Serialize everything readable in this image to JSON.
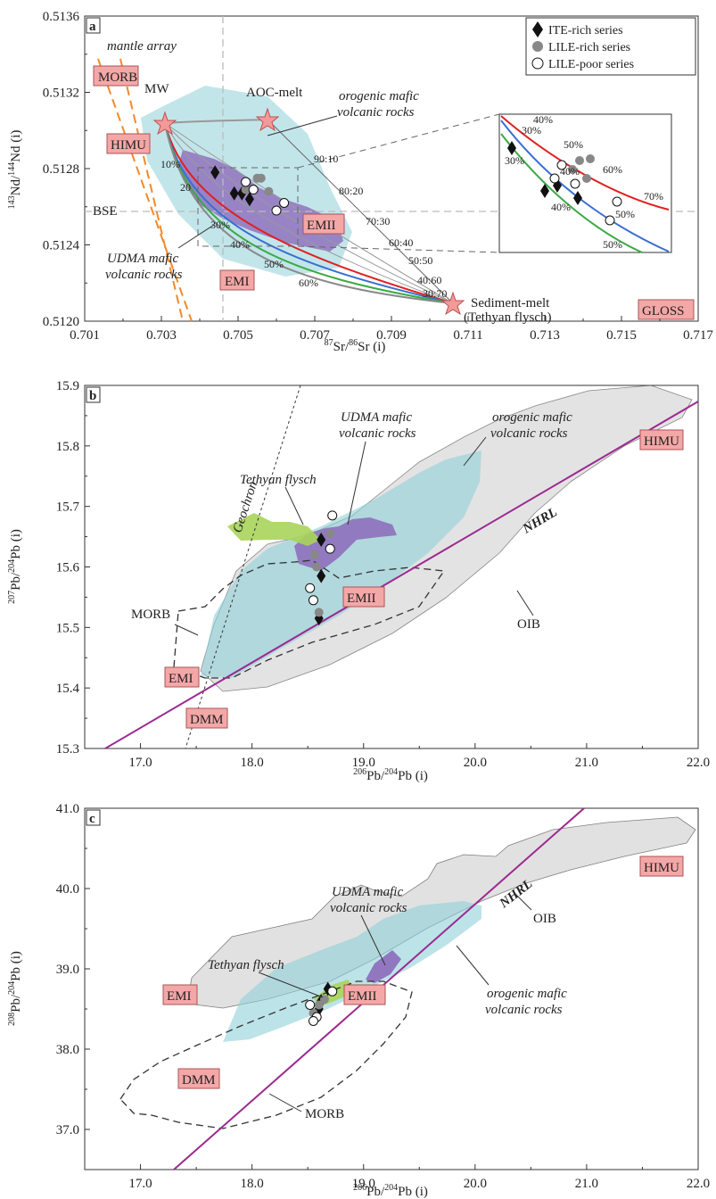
{
  "chart_data": [
    {
      "type": "scatter",
      "panel": "a",
      "xlabel_sup": "87",
      "xlabel_mid": "Sr/",
      "xlabel_sup2": "86",
      "xlabel_end": "Sr (i)",
      "ylabel_sup": "143",
      "ylabel_mid": "Nd/",
      "ylabel_sup2": "144",
      "ylabel_end": "Nd (i)",
      "xlim": [
        0.701,
        0.717
      ],
      "ylim": [
        0.512,
        0.5136
      ],
      "xticks": [
        "0.701",
        "0.703",
        "0.705",
        "0.707",
        "0.709",
        "0.711",
        "0.713",
        "0.715",
        "0.717"
      ],
      "yticks": [
        "0.5120",
        "0.5124",
        "0.5128",
        "0.5132",
        "0.5136"
      ],
      "legend": [
        "ITE-rich series",
        "LILE-rich series",
        "LILE-poor series"
      ],
      "series": [
        {
          "name": "ITE-rich series",
          "points": [
            [
              0.7044,
              0.51278
            ],
            [
              0.7049,
              0.51267
            ],
            [
              0.7051,
              0.51267
            ],
            [
              0.7053,
              0.51264
            ]
          ]
        },
        {
          "name": "LILE-rich series",
          "points": [
            [
              0.7052,
              0.51269
            ],
            [
              0.7055,
              0.51275
            ],
            [
              0.7056,
              0.51275
            ],
            [
              0.7058,
              0.51268
            ]
          ]
        },
        {
          "name": "LILE-poor series",
          "points": [
            [
              0.7052,
              0.51273
            ],
            [
              0.7054,
              0.51269
            ],
            [
              0.7062,
              0.51262
            ],
            [
              0.706,
              0.51258
            ]
          ]
        }
      ],
      "labels": {
        "mantle_array": "mantle array",
        "morb": "MORB",
        "mw": "MW",
        "aoc": "AOC-melt",
        "orogenic1": "orogenic mafic",
        "orogenic2": "volcanic rocks",
        "himu": "HIMU",
        "bse": "BSE",
        "udma1": "UDMA mafic",
        "udma2": "volcanic rocks",
        "emi": "EMI",
        "emii": "EMII",
        "gloss": "GLOSS",
        "sediment1": "Sediment-melt",
        "sediment2": "(Tethyan flysch)"
      },
      "mixing_ratios": [
        "90:10",
        "80:20",
        "70:30",
        "60:40",
        "50:50",
        "40:60",
        "30:70"
      ],
      "curve_labels": [
        "10%",
        "20",
        "30%",
        "40%",
        "50%",
        "60%"
      ],
      "inset_labels": [
        "40%",
        "30%",
        "30%",
        "50%",
        "40%",
        "60%",
        "40%",
        "70%",
        "50%",
        "50%"
      ]
    },
    {
      "type": "scatter",
      "panel": "b",
      "xlabel_sup": "206",
      "xlabel_end": "Pb/",
      "xlabel_sup2": "204",
      "xlabel_end2": "Pb (i)",
      "ylabel_sup": "207",
      "ylabel_mid": "Pb/",
      "ylabel_sup2": "204",
      "ylabel_end": "Pb (i)",
      "xlim": [
        16.5,
        22.0
      ],
      "ylim": [
        15.3,
        15.9
      ],
      "xticks": [
        "17.0",
        "18.0",
        "19.0",
        "20.0",
        "21.0",
        "22.0"
      ],
      "yticks": [
        "15.3",
        "15.4",
        "15.5",
        "15.6",
        "15.7",
        "15.8",
        "15.9"
      ],
      "series": [
        {
          "name": "ITE-rich series",
          "points": [
            [
              18.62,
              15.645
            ],
            [
              18.62,
              15.585
            ],
            [
              18.6,
              15.515
            ]
          ]
        },
        {
          "name": "LILE-rich series",
          "points": [
            [
              18.7,
              15.655
            ],
            [
              18.58,
              15.6
            ],
            [
              18.56,
              15.62
            ],
            [
              18.6,
              15.525
            ]
          ]
        },
        {
          "name": "LILE-poor series",
          "points": [
            [
              18.72,
              15.685
            ],
            [
              18.7,
              15.63
            ],
            [
              18.52,
              15.565
            ],
            [
              18.55,
              15.545
            ]
          ]
        }
      ],
      "labels": {
        "udma1": "UDMA mafic",
        "udma2": "volcanic rocks",
        "orogenic1": "orogenic mafic",
        "orogenic2": "volcanic rocks",
        "tethyan": "Tethyan flysch",
        "geochron": "Geochron",
        "nhrl": "NHRL",
        "himu": "HIMU",
        "emii": "EMII",
        "morb": "MORB",
        "oib": "OIB",
        "emi": "EMI",
        "dmm": "DMM"
      }
    },
    {
      "type": "scatter",
      "panel": "c",
      "xlabel_sup": "206",
      "xlabel_end": "Pb/",
      "xlabel_sup2": "204",
      "xlabel_end2": "Pb (i)",
      "ylabel_sup": "208",
      "ylabel_mid": "Pb/",
      "ylabel_sup2": "204",
      "ylabel_end": "Pb (i)",
      "xlim": [
        16.5,
        22.0
      ],
      "ylim": [
        36.5,
        41.0
      ],
      "xticks": [
        "17.0",
        "18.0",
        "19.0",
        "20.0",
        "21.0",
        "22.0"
      ],
      "yticks": [
        "37.0",
        "38.0",
        "39.0",
        "40.0",
        "41.0"
      ],
      "series": [
        {
          "name": "ITE-rich series",
          "points": [
            [
              18.62,
              38.6
            ],
            [
              18.68,
              38.75
            ],
            [
              18.6,
              38.5
            ]
          ]
        },
        {
          "name": "LILE-rich series",
          "points": [
            [
              18.6,
              38.55
            ],
            [
              18.65,
              38.62
            ],
            [
              18.55,
              38.45
            ]
          ]
        },
        {
          "name": "LILE-poor series",
          "points": [
            [
              18.52,
              38.55
            ],
            [
              18.58,
              38.4
            ],
            [
              18.55,
              38.35
            ],
            [
              18.72,
              38.72
            ]
          ]
        }
      ],
      "labels": {
        "udma1": "UDMA mafic",
        "udma2": "volcanic rocks",
        "tethyan": "Tethyan flysch",
        "emi": "EMI",
        "emii": "EMII",
        "nhrl": "NHRL",
        "himu": "HIMU",
        "oib": "OIB",
        "orogenic1": "orogenic mafic",
        "orogenic2": "volcanic rocks",
        "dmm": "DMM",
        "morb": "MORB"
      }
    }
  ]
}
